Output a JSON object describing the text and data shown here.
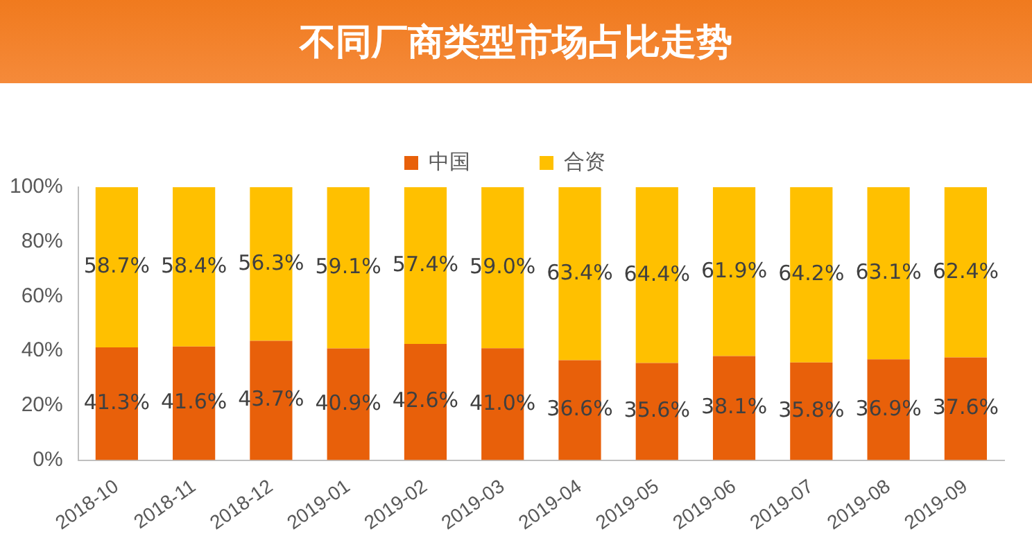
{
  "chart_data": {
    "type": "bar",
    "title": "不同厂商类型市场占比走势",
    "stacked": true,
    "legend": "top",
    "grid": false,
    "categories": [
      "2018-10",
      "2018-11",
      "2018-12",
      "2019-01",
      "2019-02",
      "2019-03",
      "2019-04",
      "2019-05",
      "2019-06",
      "2019-07",
      "2019-08",
      "2019-09"
    ],
    "ylim": [
      0,
      100
    ],
    "yticks": [
      {
        "value": 0,
        "label": "0%"
      },
      {
        "value": 20,
        "label": "20%"
      },
      {
        "value": 40,
        "label": "40%"
      },
      {
        "value": 60,
        "label": "60%"
      },
      {
        "value": 80,
        "label": "80%"
      },
      {
        "value": 100,
        "label": "100%"
      }
    ],
    "series": [
      {
        "name": "中国",
        "color": "#e8600a",
        "values": [
          41.3,
          41.6,
          43.7,
          40.9,
          42.6,
          41.0,
          36.6,
          35.6,
          38.1,
          35.8,
          36.9,
          37.6
        ],
        "value_labels": [
          "41.3%",
          "41.6%",
          "43.7%",
          "40.9%",
          "42.6%",
          "41.0%",
          "36.6%",
          "35.6%",
          "38.1%",
          "35.8%",
          "36.9%",
          "37.6%"
        ]
      },
      {
        "name": "合资",
        "color": "#ffc000",
        "values": [
          58.7,
          58.4,
          56.3,
          59.1,
          57.4,
          59.0,
          63.4,
          64.4,
          61.9,
          64.2,
          63.1,
          62.4
        ],
        "value_labels": [
          "58.7%",
          "58.4%",
          "56.3%",
          "59.1%",
          "57.4%",
          "59.0%",
          "63.4%",
          "64.4%",
          "61.9%",
          "64.2%",
          "63.1%",
          "62.4%"
        ]
      }
    ]
  }
}
